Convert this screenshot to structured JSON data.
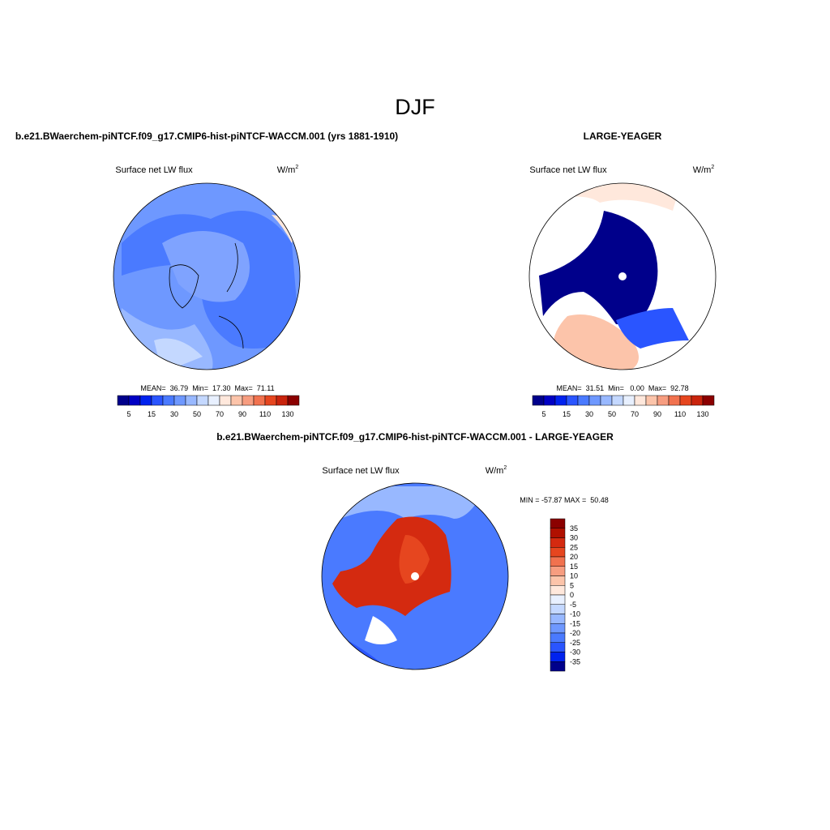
{
  "title": "DJF",
  "panels": [
    {
      "case": "b.e21.BWaerchem-piNTCF.f09_g17.CMIP6-hist-piNTCF-WACCM.001 (yrs 1881-1910)",
      "variable": "Surface net LW flux",
      "units": "W/m",
      "units_power": "2",
      "stats": "MEAN=  36.79  Min=  17.30  Max=  71.11",
      "colorbar": {
        "labels": [
          5,
          15,
          30,
          50,
          70,
          90,
          110,
          130
        ],
        "colors": [
          "#00008b",
          "#0000c4",
          "#0022ee",
          "#2a55ff",
          "#4a7aff",
          "#6e98ff",
          "#98b8ff",
          "#c4d8ff",
          "#e8f0ff",
          "#ffe8dc",
          "#fcc4aa",
          "#f79d80",
          "#f1724f",
          "#e6461f",
          "#c9240d",
          "#8b0000"
        ]
      }
    },
    {
      "case": "LARGE-YEAGER",
      "variable": "Surface net LW flux",
      "units": "W/m",
      "units_power": "2",
      "stats": "MEAN=  31.51  Min=   0.00  Max=  92.78",
      "colorbar": {
        "labels": [
          5,
          15,
          30,
          50,
          70,
          90,
          110,
          130
        ],
        "colors": [
          "#00008b",
          "#0000c4",
          "#0022ee",
          "#2a55ff",
          "#4a7aff",
          "#6e98ff",
          "#98b8ff",
          "#c4d8ff",
          "#e8f0ff",
          "#ffe8dc",
          "#fcc4aa",
          "#f79d80",
          "#f1724f",
          "#e6461f",
          "#c9240d",
          "#8b0000"
        ]
      }
    }
  ],
  "difference": {
    "case": "b.e21.BWaerchem-piNTCF.f09_g17.CMIP6-hist-piNTCF-WACCM.001 - LARGE-YEAGER",
    "variable": "Surface net LW flux",
    "units": "W/m",
    "units_power": "2",
    "stats": "MIN = -57.87 MAX =  50.48",
    "colorbar": {
      "labels": [
        35,
        30,
        25,
        20,
        15,
        10,
        5,
        0,
        -5,
        -10,
        -15,
        -20,
        -25,
        -30,
        -35
      ],
      "colors": [
        "#8b0000",
        "#b01000",
        "#d42a10",
        "#e6461f",
        "#f1724f",
        "#f79d80",
        "#fcc4aa",
        "#ffe8dc",
        "#e8f0ff",
        "#c4d8ff",
        "#98b8ff",
        "#6e98ff",
        "#4a7aff",
        "#2a55ff",
        "#0022ee",
        "#00008b"
      ]
    }
  }
}
